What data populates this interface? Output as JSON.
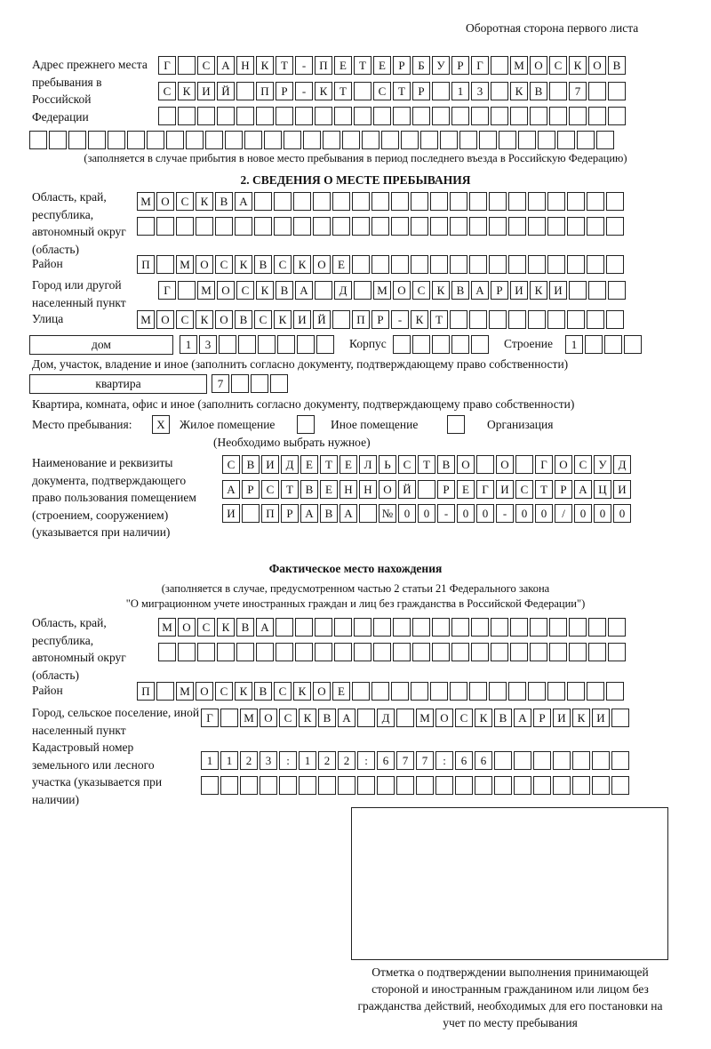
{
  "header": "Оборотная сторона первого листа",
  "prev_address": {
    "label": "Адрес прежнего места пребывания в Российской Федерации",
    "rows": [
      "Г_САНКТ-ПЕТЕРБУРГ_МОСКОВ",
      "СКИЙ_ПР-КТ_СТР_13_КВ_7__",
      "________________________",
      "______________________________"
    ],
    "note": "(заполняется в случае прибытия в новое место пребывания в период последнего въезда в Российскую Федерацию)"
  },
  "section2": {
    "title": "2. СВЕДЕНИЯ О МЕСТЕ ПРЕБЫВАНИЯ",
    "oblast_label": "Область, край, республика, автономный округ (область)",
    "oblast_rows": [
      "МОСКВА___________________",
      "_________________________"
    ],
    "raion_label": "Район",
    "raion": "П_МОСКВСКОЕ______________",
    "gorod_label": "Город или другой населенный пункт",
    "gorod": "Г_МОСКВА_Д_МОСКВАРИКИ___",
    "ulitsa_label": "Улица",
    "ulitsa": "МОСКОВСКИЙ_ПР-КТ_________",
    "dom_type": "дом",
    "dom": "13______",
    "korpus_label": "Корпус",
    "korpus": "_____",
    "stroenie_label": "Строение",
    "stroenie": "1___",
    "dom_note": "Дом, участок, владение и иное (заполнить согласно документу, подтверждающему право собственности)",
    "kv_type": "квартира",
    "kv": "7___",
    "kv_note": "Квартира, комната, офис и иное (заполнить согласно документу, подтверждающему право собственности)",
    "mesto_label": "Место пребывания:",
    "opt1_mark": "Х",
    "opt1": "Жилое помещение",
    "opt2_mark": "",
    "opt2": "Иное помещение",
    "opt3_mark": "",
    "opt3": "Организация",
    "choose_note": "(Необходимо выбрать нужное)",
    "doc_label": "Наименование и реквизиты документа, подтверждающего право пользования помещением (строением, сооружением) (указывается при наличии)",
    "doc_rows": [
      "СВИДЕТЕЛЬСТВО_О_ГОСУД",
      "АРСТВЕННОЙ_РЕГИСТРАЦИ",
      "И_ПРАВА_№00-00-00/000"
    ]
  },
  "actual": {
    "title": "Фактическое место нахождения",
    "note1": "(заполняется в случае, предусмотренном частью 2 статьи 21 Федерального закона",
    "note2": "\"О миграционном учете иностранных граждан и лиц без гражданства в Российской Федерации\")",
    "oblast_label": "Область, край, республика, автономный округ (область)",
    "oblast_rows": [
      "МОСКВА__________________",
      "________________________"
    ],
    "raion_label": "Район",
    "raion": "П_МОСКВСКОЕ______________",
    "gorod_label": "Город, сельское поселение, иной населенный пункт",
    "gorod": "Г_МОСКВА_Д_МОСКВАРИКИ_",
    "kadastr_label": "Кадастровый номер земельного или лесного участка (указывается при наличии)",
    "kadastr_rows": [
      "1123:122:677:66_______",
      "______________________"
    ]
  },
  "stamp_caption": "Отметка о подтверждении выполнения принимающей стороной и иностранным гражданином или лицом без гражданства действий, необходимых для его постановки на учет по месту пребывания"
}
